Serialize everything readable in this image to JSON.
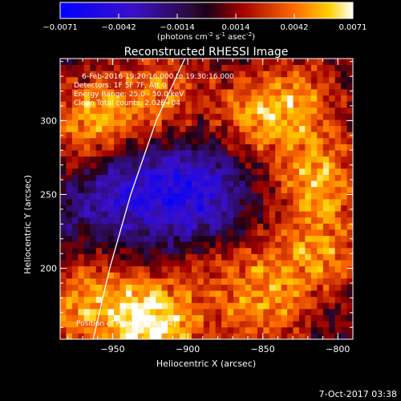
{
  "chart_data": {
    "type": "heatmap",
    "title": "Reconstructed RHESSI Image",
    "xlabel": "Heliocentric X (arcsec)",
    "ylabel": "Heliocentric Y (arcsec)",
    "xlim": [
      -985,
      -790
    ],
    "ylim": [
      152,
      342
    ],
    "x_ticks": [
      -950,
      -900,
      -850,
      -800
    ],
    "y_ticks": [
      200,
      250,
      300
    ],
    "colorbar": {
      "min": -0.0071,
      "max": 0.0071,
      "ticks": [
        "-0.0071",
        "-0.0042",
        "-0.0014",
        "0.0014",
        "0.0042",
        "0.0071"
      ],
      "unit_label": "(photons cm",
      "unit_exp1": "-2",
      "unit_mid": " s",
      "unit_exp2": "-1",
      "unit_mid2": " asec",
      "unit_exp3": "-2",
      "unit_end": ")"
    },
    "annotations": [
      "6-Feb-2016 19:20:16.000 to 19:30:16.000",
      "Detectors: 1F 5F 7F, Att 0",
      "Energy Range: 25.0 - 50.0 keV",
      "Clean     Total counts: 2.02E+04"
    ],
    "peak_label": "Position of Peak:  [-926,164]",
    "peak": [
      -926,
      164
    ],
    "limb_curve": [
      [
        -963,
        152
      ],
      [
        -952,
        200
      ],
      [
        -938,
        250
      ],
      [
        -921,
        300
      ],
      [
        -902,
        342
      ]
    ],
    "blobs": [
      {
        "x": -924,
        "y": 163,
        "amp": 1.0
      },
      {
        "x": -965,
        "y": 300,
        "amp": 0.7
      },
      {
        "x": -918,
        "y": 318,
        "amp": 0.55
      },
      {
        "x": -855,
        "y": 302,
        "amp": 0.65
      },
      {
        "x": -812,
        "y": 262,
        "amp": 0.7
      },
      {
        "x": -822,
        "y": 318,
        "amp": 0.45
      },
      {
        "x": -810,
        "y": 212,
        "amp": 0.55
      },
      {
        "x": -845,
        "y": 190,
        "amp": 0.4
      },
      {
        "x": -880,
        "y": 200,
        "amp": 0.3
      },
      {
        "x": -965,
        "y": 195,
        "amp": 0.25
      },
      {
        "x": -975,
        "y": 170,
        "amp": 0.5
      },
      {
        "x": -850,
        "y": 160,
        "amp": 0.35
      },
      {
        "x": -930,
        "y": 255,
        "amp": -0.45
      },
      {
        "x": -895,
        "y": 245,
        "amp": -0.5
      },
      {
        "x": -960,
        "y": 240,
        "amp": -0.3
      },
      {
        "x": -880,
        "y": 270,
        "amp": -0.25
      }
    ]
  },
  "footer": {
    "timestamp": "7-Oct-2017 03:38"
  }
}
